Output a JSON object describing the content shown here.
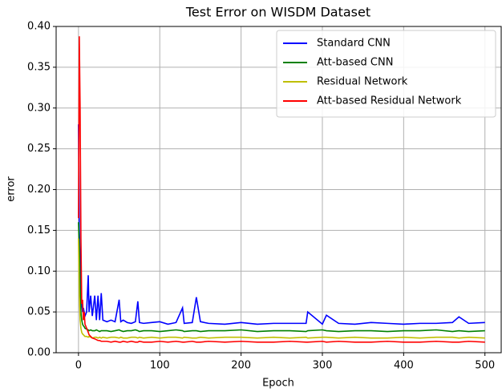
{
  "chart_data": {
    "type": "line",
    "title": "Test Error on WISDM Dataset",
    "xlabel": "Epoch",
    "ylabel": "error",
    "x": [
      0,
      1,
      2,
      3,
      4,
      5,
      6,
      7,
      8,
      10,
      12,
      13,
      15,
      17,
      20,
      22,
      24,
      26,
      28,
      30,
      35,
      40,
      45,
      50,
      52,
      55,
      60,
      65,
      70,
      73,
      75,
      80,
      90,
      100,
      110,
      120,
      128,
      130,
      140,
      145,
      150,
      160,
      180,
      200,
      220,
      240,
      260,
      280,
      282,
      300,
      305,
      320,
      340,
      360,
      380,
      400,
      420,
      440,
      460,
      468,
      480,
      500
    ],
    "series": [
      {
        "name": "Standard CNN",
        "color": "#0000ff",
        "values": [
          0.28,
          0.15,
          0.12,
          0.08,
          0.06,
          0.05,
          0.055,
          0.05,
          0.045,
          0.05,
          0.095,
          0.05,
          0.07,
          0.045,
          0.07,
          0.04,
          0.07,
          0.04,
          0.073,
          0.04,
          0.038,
          0.04,
          0.038,
          0.065,
          0.038,
          0.04,
          0.037,
          0.036,
          0.038,
          0.063,
          0.037,
          0.036,
          0.037,
          0.038,
          0.035,
          0.037,
          0.055,
          0.036,
          0.037,
          0.068,
          0.038,
          0.036,
          0.035,
          0.037,
          0.035,
          0.036,
          0.036,
          0.036,
          0.05,
          0.035,
          0.046,
          0.036,
          0.035,
          0.037,
          0.036,
          0.035,
          0.036,
          0.036,
          0.037,
          0.044,
          0.036,
          0.037
        ]
      },
      {
        "name": "Att-based CNN",
        "color": "#008000",
        "values": [
          0.16,
          0.13,
          0.08,
          0.05,
          0.04,
          0.035,
          0.033,
          0.032,
          0.03,
          0.029,
          0.028,
          0.027,
          0.028,
          0.027,
          0.027,
          0.028,
          0.027,
          0.026,
          0.027,
          0.027,
          0.027,
          0.026,
          0.027,
          0.028,
          0.027,
          0.026,
          0.027,
          0.027,
          0.028,
          0.027,
          0.026,
          0.027,
          0.027,
          0.026,
          0.027,
          0.028,
          0.027,
          0.026,
          0.027,
          0.027,
          0.026,
          0.027,
          0.027,
          0.028,
          0.026,
          0.027,
          0.027,
          0.026,
          0.027,
          0.028,
          0.027,
          0.026,
          0.027,
          0.027,
          0.026,
          0.027,
          0.027,
          0.028,
          0.026,
          0.027,
          0.026,
          0.027
        ]
      },
      {
        "name": "Residual Network",
        "color": "#bfbf00",
        "values": [
          0.14,
          0.07,
          0.04,
          0.03,
          0.025,
          0.023,
          0.022,
          0.021,
          0.02,
          0.02,
          0.019,
          0.02,
          0.019,
          0.018,
          0.019,
          0.019,
          0.018,
          0.019,
          0.018,
          0.019,
          0.018,
          0.019,
          0.019,
          0.018,
          0.019,
          0.018,
          0.018,
          0.019,
          0.019,
          0.018,
          0.019,
          0.018,
          0.019,
          0.018,
          0.019,
          0.019,
          0.018,
          0.019,
          0.018,
          0.018,
          0.019,
          0.018,
          0.019,
          0.019,
          0.018,
          0.019,
          0.018,
          0.019,
          0.018,
          0.019,
          0.019,
          0.018,
          0.019,
          0.018,
          0.018,
          0.019,
          0.018,
          0.019,
          0.019,
          0.018,
          0.019,
          0.018
        ]
      },
      {
        "name": "Att-based Residual Network",
        "color": "#ff0000",
        "values": [
          0.165,
          0.388,
          0.3,
          0.14,
          0.06,
          0.065,
          0.04,
          0.05,
          0.035,
          0.03,
          0.025,
          0.022,
          0.02,
          0.018,
          0.017,
          0.016,
          0.015,
          0.015,
          0.014,
          0.014,
          0.014,
          0.013,
          0.014,
          0.013,
          0.013,
          0.014,
          0.013,
          0.014,
          0.013,
          0.013,
          0.014,
          0.013,
          0.013,
          0.014,
          0.013,
          0.014,
          0.013,
          0.013,
          0.014,
          0.013,
          0.013,
          0.014,
          0.013,
          0.014,
          0.013,
          0.013,
          0.014,
          0.013,
          0.013,
          0.014,
          0.013,
          0.014,
          0.013,
          0.013,
          0.014,
          0.013,
          0.013,
          0.014,
          0.013,
          0.013,
          0.014,
          0.013
        ]
      }
    ],
    "xlim": [
      -27.5,
      520
    ],
    "xticks": [
      0,
      100,
      200,
      300,
      400,
      500
    ],
    "ylim": [
      0,
      0.4
    ],
    "yticks": [
      {
        "value": 0,
        "label": "0.00"
      },
      {
        "value": 0.05,
        "label": "0.05"
      },
      {
        "value": 0.1,
        "label": "0.10"
      },
      {
        "value": 0.15,
        "label": "0.15"
      },
      {
        "value": 0.2,
        "label": "0.20"
      },
      {
        "value": 0.25,
        "label": "0.25"
      },
      {
        "value": 0.3,
        "label": "0.30"
      },
      {
        "value": 0.35,
        "label": "0.35"
      },
      {
        "value": 0.4,
        "label": "0.40"
      }
    ],
    "grid": true,
    "legend": "upper right"
  }
}
